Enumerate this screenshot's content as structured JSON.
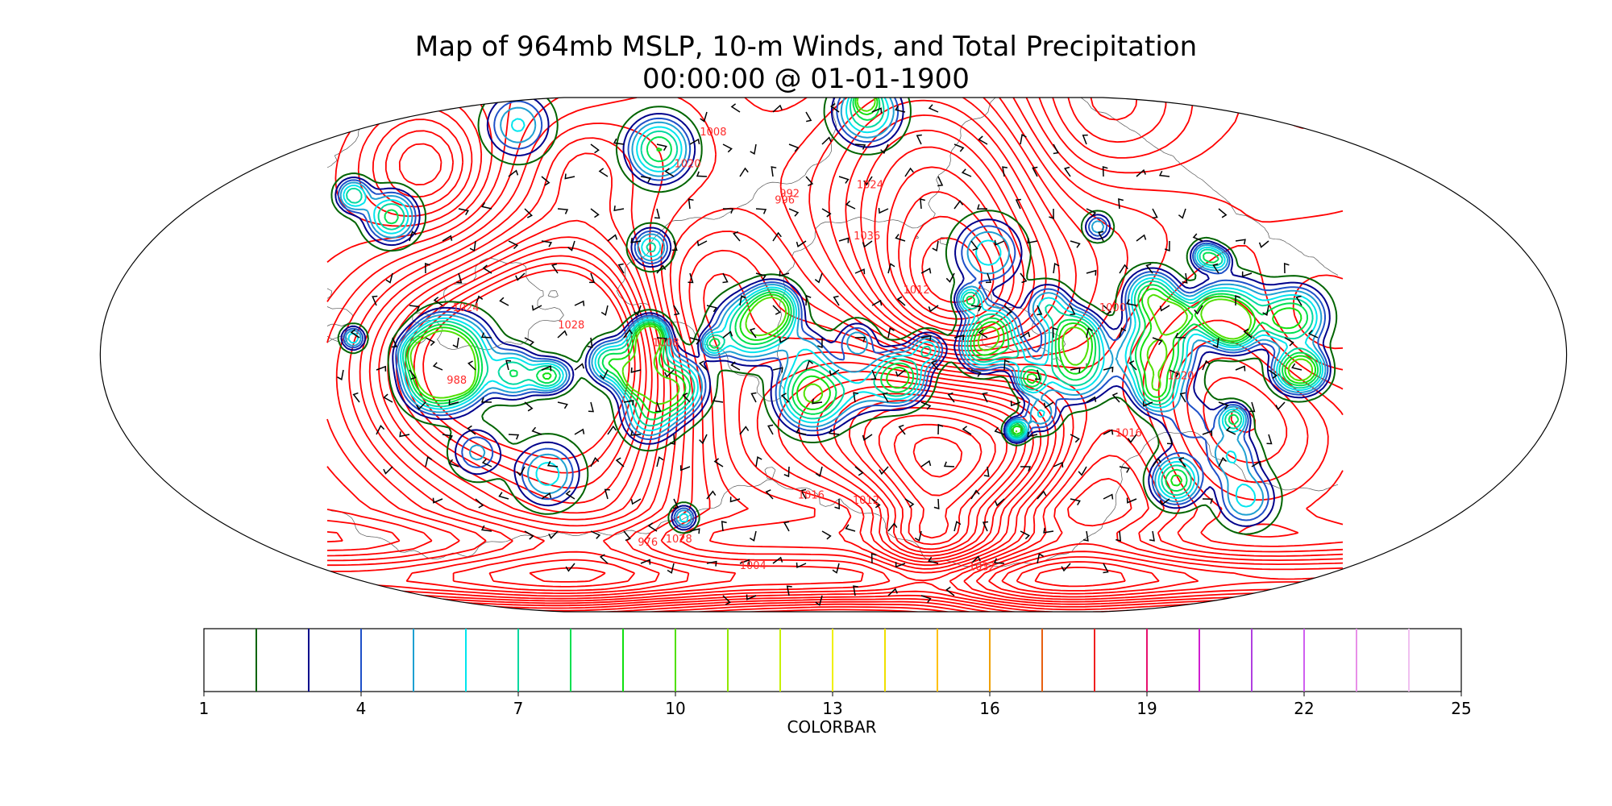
{
  "title": {
    "line1": "Map of 964mb MSLP, 10-m Winds, and Total Precipitation",
    "line2": "00:00:00 @ 01-01-1900"
  },
  "colorbar": {
    "title": "COLORBAR",
    "min": 1,
    "max": 25,
    "tick_labels": [
      "1",
      "4",
      "7",
      "10",
      "13",
      "16",
      "19",
      "22",
      "25"
    ],
    "level_colors": [
      "#006400",
      "#00008b",
      "#1e50c8",
      "#1ea0d2",
      "#00e5ee",
      "#00d8a0",
      "#00e050",
      "#10e010",
      "#50e000",
      "#90e800",
      "#c8f000",
      "#f0f000",
      "#f0e000",
      "#ffc000",
      "#f0a000",
      "#e86010",
      "#f02020",
      "#e8106e",
      "#d01ed0",
      "#b040e0",
      "#d060f0",
      "#e890e8",
      "#f0c0f0"
    ]
  },
  "isobar_labels": [
    "1016",
    "1020",
    "1024",
    "1028",
    "1032",
    "1012",
    "1008",
    "1004",
    "1000",
    "996",
    "992",
    "988",
    "976",
    "1016",
    "1020",
    "1024",
    "1028",
    "1012",
    "1008",
    "1036"
  ],
  "colors": {
    "isobar": "#ff0000",
    "coast": "#555555",
    "frame": "#000000"
  }
}
